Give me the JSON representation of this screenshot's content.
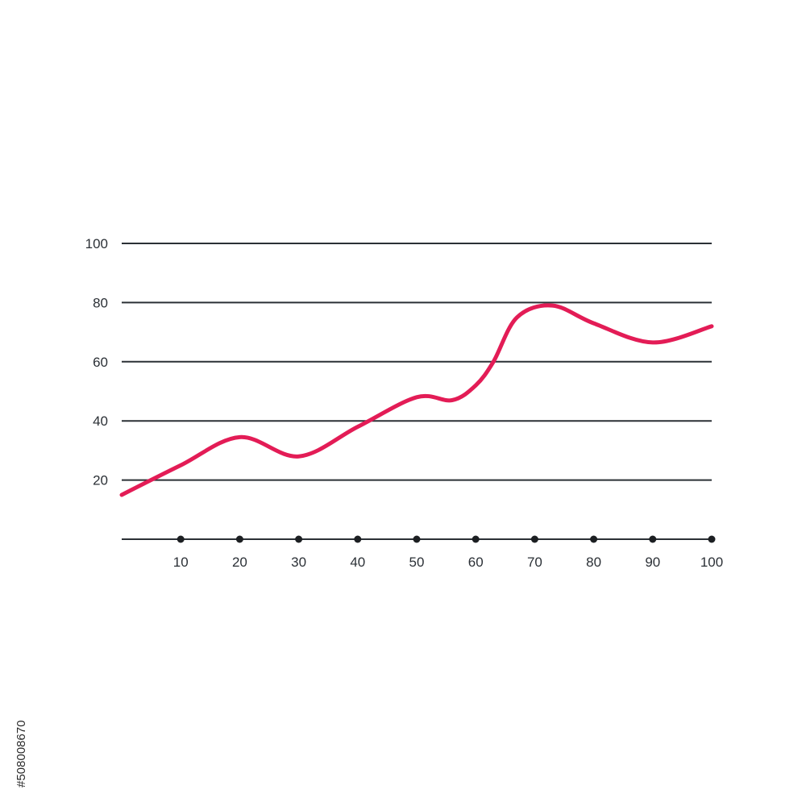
{
  "chart_data": {
    "type": "line",
    "title": "",
    "xlabel": "",
    "ylabel": "",
    "xlim": [
      0,
      100
    ],
    "ylim": [
      0,
      100
    ],
    "x_ticks": [
      10,
      20,
      30,
      40,
      50,
      60,
      70,
      80,
      90,
      100
    ],
    "y_ticks": [
      20,
      40,
      60,
      80,
      100
    ],
    "grid": "horizontal",
    "legend": "none",
    "series": [
      {
        "color": "#e31c56",
        "x": [
          0,
          10,
          20,
          30,
          40,
          50,
          56,
          60,
          63,
          67,
          73,
          80,
          90,
          100
        ],
        "y": [
          15,
          25,
          34.5,
          28,
          38,
          48,
          47,
          52,
          60,
          75,
          79,
          73,
          66.5,
          72
        ]
      }
    ],
    "axis_color": "#2b3036",
    "dot_color": "#1c1f22"
  },
  "watermark_id": "#508008670"
}
